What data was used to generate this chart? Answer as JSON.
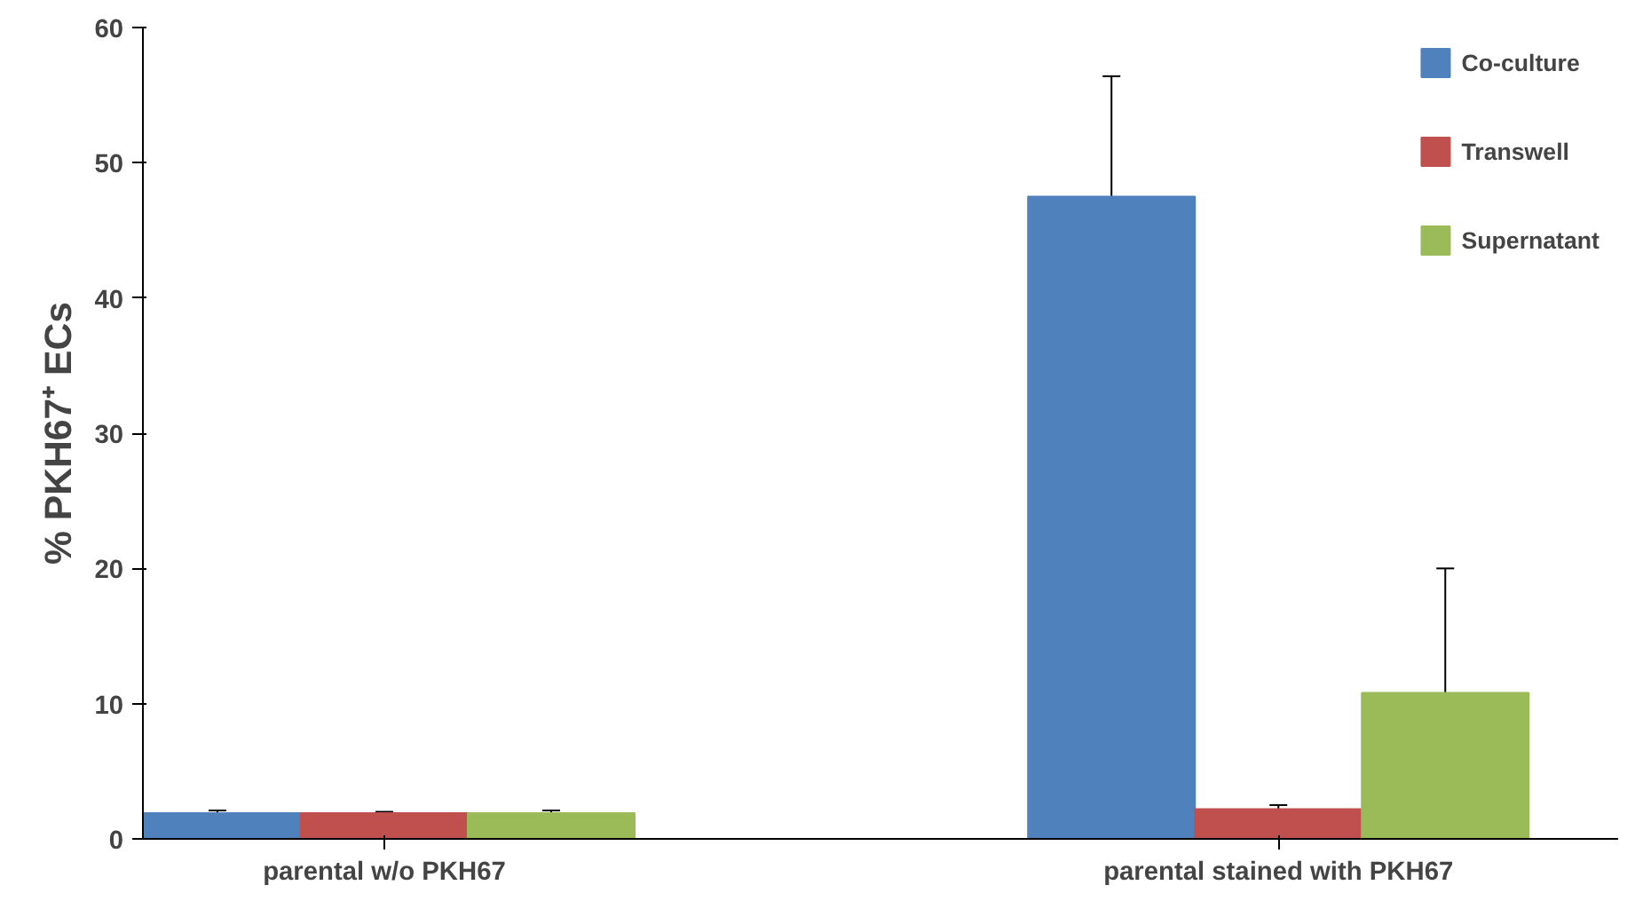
{
  "chart_data": {
    "type": "bar",
    "ylabel": "% PKH67⁺ ECs",
    "categories": [
      "parental w/o PKH67",
      "parental stained with PKH67"
    ],
    "series": [
      {
        "name": "Co-culture",
        "color": "#4f81bd",
        "values": [
          1.9,
          47.5
        ],
        "errors": [
          0.2,
          8.9
        ]
      },
      {
        "name": "Transwell",
        "color": "#c0504d",
        "values": [
          1.9,
          2.2
        ],
        "errors": [
          0.1,
          0.3
        ]
      },
      {
        "name": "Supernatant",
        "color": "#9bbb59",
        "values": [
          1.9,
          10.8
        ],
        "errors": [
          0.2,
          9.2
        ]
      }
    ],
    "ylim": [
      0,
      60
    ],
    "yticks": [
      0,
      10,
      20,
      30,
      40,
      50,
      60
    ],
    "grid": false,
    "legend": "top right"
  }
}
